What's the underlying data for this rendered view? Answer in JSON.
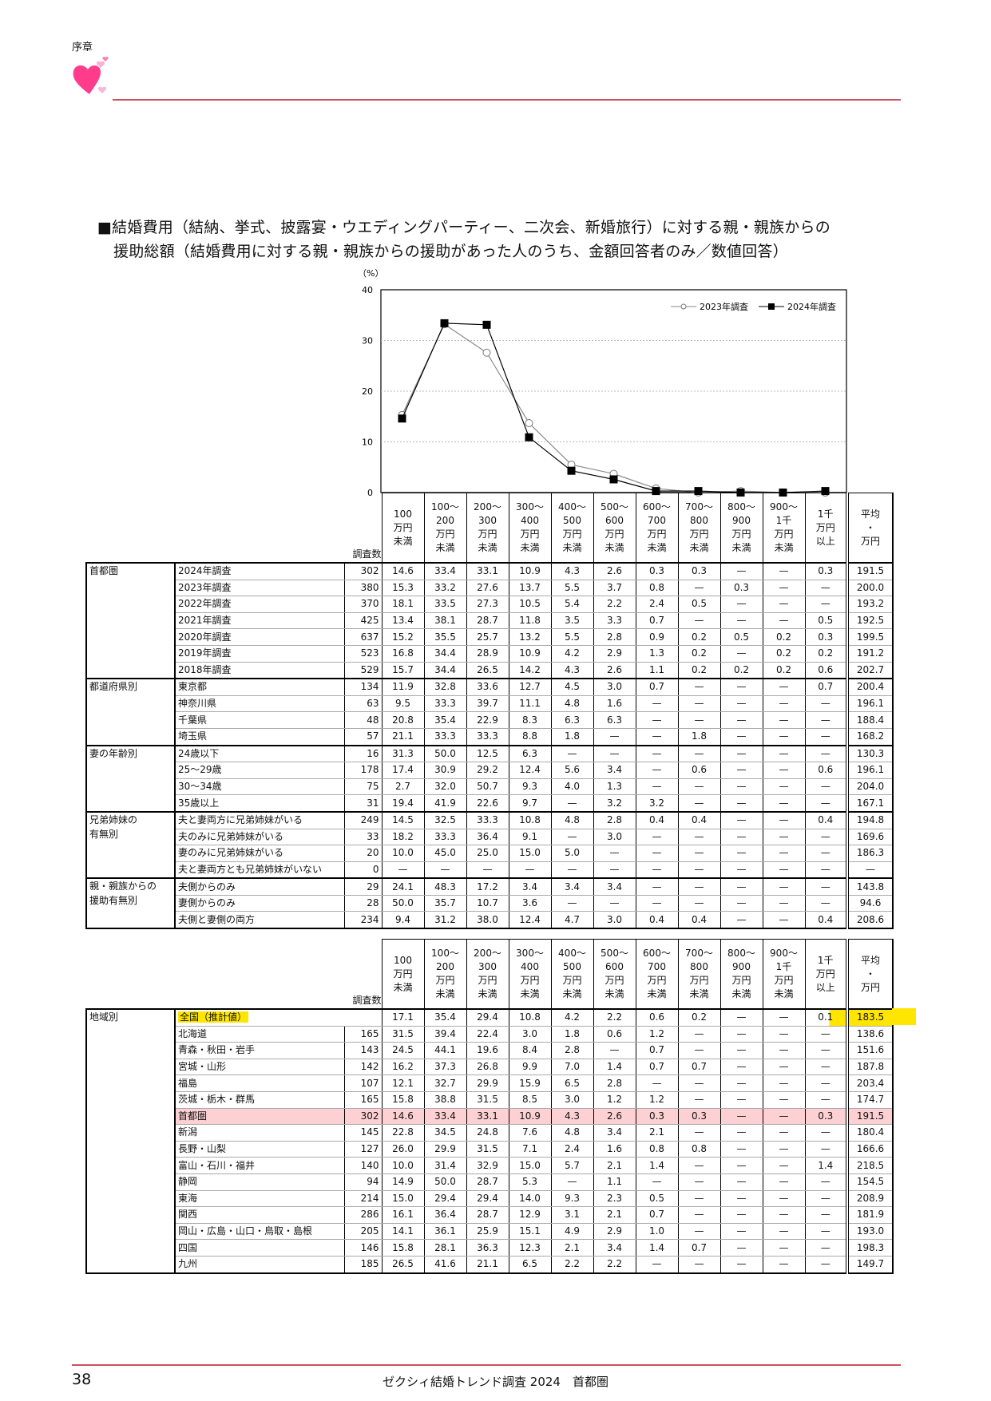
{
  "header": {
    "section": "序章"
  },
  "title": {
    "line1": "■結婚費用（結納、挙式、披露宴・ウエディングパーティー、二次会、新婚旅行）に対する親・親族からの",
    "line2": "援助総額（結婚費用に対する親・親族からの援助があった人のうち、金額回答者のみ／数値回答）"
  },
  "colors": {
    "accent_rule": "#c9505e",
    "heart": "#ff3c8c",
    "highlight_yellow": "#ffe600",
    "highlight_pink": "#fdd0d3"
  },
  "chart_data": {
    "type": "line",
    "ylabel": "（%）",
    "ylim": [
      0,
      40
    ],
    "yticks": [
      "0",
      "10",
      "20",
      "30",
      "40"
    ],
    "grid": "horizontal dotted",
    "legend_placement": "top-right",
    "categories": [
      "100万円未満",
      "100～200万円未満",
      "200～300万円未満",
      "300～400万円未満",
      "400～500万円未満",
      "500～600万円未満",
      "600～700万円未満",
      "700～800万円未満",
      "800～900万円未満",
      "900～1千万円未満",
      "1千万円以上"
    ],
    "series": [
      {
        "name": "2023年調査",
        "marker": "open-circle",
        "color": "#888888",
        "values": [
          15.3,
          33.2,
          27.6,
          13.7,
          5.5,
          3.7,
          0.8,
          0,
          0.3,
          0,
          0
        ]
      },
      {
        "name": "2024年調査",
        "marker": "filled-square",
        "color": "#000000",
        "values": [
          14.6,
          33.4,
          33.1,
          10.9,
          4.3,
          2.6,
          0.3,
          0.3,
          0,
          0,
          0.3
        ]
      }
    ]
  },
  "table_headers": {
    "n": "調査数",
    "columns": [
      "100\n万円\n未満",
      "100～\n200\n万円\n未満",
      "200～\n300\n万円\n未満",
      "300～\n400\n万円\n未満",
      "400～\n500\n万円\n未満",
      "500～\n600\n万円\n未満",
      "600～\n700\n万円\n未満",
      "700～\n800\n万円\n未満",
      "800～\n900\n万円\n未満",
      "900～\n1千\n万円\n未満",
      "1千\n万円\n以上"
    ],
    "avg": "平均\n・\n万円"
  },
  "table1": {
    "groups": [
      {
        "label": "首都圏",
        "rows": [
          {
            "label": "2024年調査",
            "n": "302",
            "values": [
              "14.6",
              "33.4",
              "33.1",
              "10.9",
              "4.3",
              "2.6",
              "0.3",
              "0.3",
              "—",
              "—",
              "0.3"
            ],
            "avg": "191.5"
          },
          {
            "label": "2023年調査",
            "n": "380",
            "values": [
              "15.3",
              "33.2",
              "27.6",
              "13.7",
              "5.5",
              "3.7",
              "0.8",
              "—",
              "0.3",
              "—",
              "—"
            ],
            "avg": "200.0"
          },
          {
            "label": "2022年調査",
            "n": "370",
            "values": [
              "18.1",
              "33.5",
              "27.3",
              "10.5",
              "5.4",
              "2.2",
              "2.4",
              "0.5",
              "—",
              "—",
              "—"
            ],
            "avg": "193.2"
          },
          {
            "label": "2021年調査",
            "n": "425",
            "values": [
              "13.4",
              "38.1",
              "28.7",
              "11.8",
              "3.5",
              "3.3",
              "0.7",
              "—",
              "—",
              "—",
              "0.5"
            ],
            "avg": "192.5"
          },
          {
            "label": "2020年調査",
            "n": "637",
            "values": [
              "15.2",
              "35.5",
              "25.7",
              "13.2",
              "5.5",
              "2.8",
              "0.9",
              "0.2",
              "0.5",
              "0.2",
              "0.3"
            ],
            "avg": "199.5"
          },
          {
            "label": "2019年調査",
            "n": "523",
            "values": [
              "16.8",
              "34.4",
              "28.9",
              "10.9",
              "4.2",
              "2.9",
              "1.3",
              "0.2",
              "—",
              "0.2",
              "0.2"
            ],
            "avg": "191.2"
          },
          {
            "label": "2018年調査",
            "n": "529",
            "values": [
              "15.7",
              "34.4",
              "26.5",
              "14.2",
              "4.3",
              "2.6",
              "1.1",
              "0.2",
              "0.2",
              "0.2",
              "0.6"
            ],
            "avg": "202.7"
          }
        ]
      },
      {
        "label": "都道府県別",
        "rows": [
          {
            "label": "東京都",
            "n": "134",
            "values": [
              "11.9",
              "32.8",
              "33.6",
              "12.7",
              "4.5",
              "3.0",
              "0.7",
              "—",
              "—",
              "—",
              "0.7"
            ],
            "avg": "200.4"
          },
          {
            "label": "神奈川県",
            "n": "63",
            "values": [
              "9.5",
              "33.3",
              "39.7",
              "11.1",
              "4.8",
              "1.6",
              "—",
              "—",
              "—",
              "—",
              "—"
            ],
            "avg": "196.1"
          },
          {
            "label": "千葉県",
            "n": "48",
            "values": [
              "20.8",
              "35.4",
              "22.9",
              "8.3",
              "6.3",
              "6.3",
              "—",
              "—",
              "—",
              "—",
              "—"
            ],
            "avg": "188.4"
          },
          {
            "label": "埼玉県",
            "n": "57",
            "values": [
              "21.1",
              "33.3",
              "33.3",
              "8.8",
              "1.8",
              "—",
              "—",
              "1.8",
              "—",
              "—",
              "—"
            ],
            "avg": "168.2"
          }
        ]
      },
      {
        "label": "妻の年齢別",
        "rows": [
          {
            "label": "24歳以下",
            "n": "16",
            "values": [
              "31.3",
              "50.0",
              "12.5",
              "6.3",
              "—",
              "—",
              "—",
              "—",
              "—",
              "—",
              "—"
            ],
            "avg": "130.3"
          },
          {
            "label": "25～29歳",
            "n": "178",
            "values": [
              "17.4",
              "30.9",
              "29.2",
              "12.4",
              "5.6",
              "3.4",
              "—",
              "0.6",
              "—",
              "—",
              "0.6"
            ],
            "avg": "196.1"
          },
          {
            "label": "30～34歳",
            "n": "75",
            "values": [
              "2.7",
              "32.0",
              "50.7",
              "9.3",
              "4.0",
              "1.3",
              "—",
              "—",
              "—",
              "—",
              "—"
            ],
            "avg": "204.0"
          },
          {
            "label": "35歳以上",
            "n": "31",
            "values": [
              "19.4",
              "41.9",
              "22.6",
              "9.7",
              "—",
              "3.2",
              "3.2",
              "—",
              "—",
              "—",
              "—"
            ],
            "avg": "167.1"
          }
        ]
      },
      {
        "label": "兄弟姉妹の\n有無別",
        "rows": [
          {
            "label": "夫と妻両方に兄弟姉妹がいる",
            "n": "249",
            "values": [
              "14.5",
              "32.5",
              "33.3",
              "10.8",
              "4.8",
              "2.8",
              "0.4",
              "0.4",
              "—",
              "—",
              "0.4"
            ],
            "avg": "194.8"
          },
          {
            "label": "夫のみに兄弟姉妹がいる",
            "n": "33",
            "values": [
              "18.2",
              "33.3",
              "36.4",
              "9.1",
              "—",
              "3.0",
              "—",
              "—",
              "—",
              "—",
              "—"
            ],
            "avg": "169.6"
          },
          {
            "label": "妻のみに兄弟姉妹がいる",
            "n": "20",
            "values": [
              "10.0",
              "45.0",
              "25.0",
              "15.0",
              "5.0",
              "—",
              "—",
              "—",
              "—",
              "—",
              "—"
            ],
            "avg": "186.3"
          },
          {
            "label": "夫と妻両方とも兄弟姉妹がいない",
            "n": "0",
            "values": [
              "—",
              "—",
              "—",
              "—",
              "—",
              "—",
              "—",
              "—",
              "—",
              "—",
              "—"
            ],
            "avg": "—"
          }
        ]
      },
      {
        "label": "親・親族からの\n援助有無別",
        "rows": [
          {
            "label": "夫側からのみ",
            "n": "29",
            "values": [
              "24.1",
              "48.3",
              "17.2",
              "3.4",
              "3.4",
              "3.4",
              "—",
              "—",
              "—",
              "—",
              "—"
            ],
            "avg": "143.8"
          },
          {
            "label": "妻側からのみ",
            "n": "28",
            "values": [
              "50.0",
              "35.7",
              "10.7",
              "3.6",
              "—",
              "—",
              "—",
              "—",
              "—",
              "—",
              "—"
            ],
            "avg": "94.6"
          },
          {
            "label": "夫側と妻側の両方",
            "n": "234",
            "values": [
              "9.4",
              "31.2",
              "38.0",
              "12.4",
              "4.7",
              "3.0",
              "0.4",
              "0.4",
              "—",
              "—",
              "0.4"
            ],
            "avg": "208.6"
          }
        ]
      }
    ]
  },
  "table2": {
    "groups": [
      {
        "label": "地域別",
        "rows": [
          {
            "label": "全国（推計値）",
            "n": "",
            "highlight": "yellow",
            "values": [
              "17.1",
              "35.4",
              "29.4",
              "10.8",
              "4.2",
              "2.2",
              "0.6",
              "0.2",
              "—",
              "—",
              "0.1"
            ],
            "avg": "183.5"
          },
          {
            "label": "北海道",
            "n": "165",
            "values": [
              "31.5",
              "39.4",
              "22.4",
              "3.0",
              "1.8",
              "0.6",
              "1.2",
              "—",
              "—",
              "—",
              "—"
            ],
            "avg": "138.6"
          },
          {
            "label": "青森・秋田・岩手",
            "n": "143",
            "values": [
              "24.5",
              "44.1",
              "19.6",
              "8.4",
              "2.8",
              "—",
              "0.7",
              "—",
              "—",
              "—",
              "—"
            ],
            "avg": "151.6"
          },
          {
            "label": "宮城・山形",
            "n": "142",
            "values": [
              "16.2",
              "37.3",
              "26.8",
              "9.9",
              "7.0",
              "1.4",
              "0.7",
              "0.7",
              "—",
              "—",
              "—"
            ],
            "avg": "187.8"
          },
          {
            "label": "福島",
            "n": "107",
            "values": [
              "12.1",
              "32.7",
              "29.9",
              "15.9",
              "6.5",
              "2.8",
              "—",
              "—",
              "—",
              "—",
              "—"
            ],
            "avg": "203.4"
          },
          {
            "label": "茨城・栃木・群馬",
            "n": "165",
            "values": [
              "15.8",
              "38.8",
              "31.5",
              "8.5",
              "3.0",
              "1.2",
              "1.2",
              "—",
              "—",
              "—",
              "—"
            ],
            "avg": "174.7"
          },
          {
            "label": "首都圏",
            "n": "302",
            "highlight": "pink",
            "values": [
              "14.6",
              "33.4",
              "33.1",
              "10.9",
              "4.3",
              "2.6",
              "0.3",
              "0.3",
              "—",
              "—",
              "0.3"
            ],
            "avg": "191.5"
          },
          {
            "label": "新潟",
            "n": "145",
            "values": [
              "22.8",
              "34.5",
              "24.8",
              "7.6",
              "4.8",
              "3.4",
              "2.1",
              "—",
              "—",
              "—",
              "—"
            ],
            "avg": "180.4"
          },
          {
            "label": "長野・山梨",
            "n": "127",
            "values": [
              "26.0",
              "29.9",
              "31.5",
              "7.1",
              "2.4",
              "1.6",
              "0.8",
              "0.8",
              "—",
              "—",
              "—"
            ],
            "avg": "166.6"
          },
          {
            "label": "富山・石川・福井",
            "n": "140",
            "values": [
              "10.0",
              "31.4",
              "32.9",
              "15.0",
              "5.7",
              "2.1",
              "1.4",
              "—",
              "—",
              "—",
              "1.4"
            ],
            "avg": "218.5"
          },
          {
            "label": "静岡",
            "n": "94",
            "values": [
              "14.9",
              "50.0",
              "28.7",
              "5.3",
              "—",
              "1.1",
              "—",
              "—",
              "—",
              "—",
              "—"
            ],
            "avg": "154.5"
          },
          {
            "label": "東海",
            "n": "214",
            "values": [
              "15.0",
              "29.4",
              "29.4",
              "14.0",
              "9.3",
              "2.3",
              "0.5",
              "—",
              "—",
              "—",
              "—"
            ],
            "avg": "208.9"
          },
          {
            "label": "関西",
            "n": "286",
            "values": [
              "16.1",
              "36.4",
              "28.7",
              "12.9",
              "3.1",
              "2.1",
              "0.7",
              "—",
              "—",
              "—",
              "—"
            ],
            "avg": "181.9"
          },
          {
            "label": "岡山・広島・山口・鳥取・島根",
            "n": "205",
            "values": [
              "14.1",
              "36.1",
              "25.9",
              "15.1",
              "4.9",
              "2.9",
              "1.0",
              "—",
              "—",
              "—",
              "—"
            ],
            "avg": "193.0"
          },
          {
            "label": "四国",
            "n": "146",
            "values": [
              "15.8",
              "28.1",
              "36.3",
              "12.3",
              "2.1",
              "3.4",
              "1.4",
              "0.7",
              "—",
              "—",
              "—"
            ],
            "avg": "198.3"
          },
          {
            "label": "九州",
            "n": "185",
            "values": [
              "26.5",
              "41.6",
              "21.1",
              "6.5",
              "2.2",
              "2.2",
              "—",
              "—",
              "—",
              "—",
              "—"
            ],
            "avg": "149.7"
          }
        ]
      }
    ]
  },
  "footer": {
    "page_number": "38",
    "title": "ゼクシィ結婚トレンド調査 2024　首都圏"
  }
}
